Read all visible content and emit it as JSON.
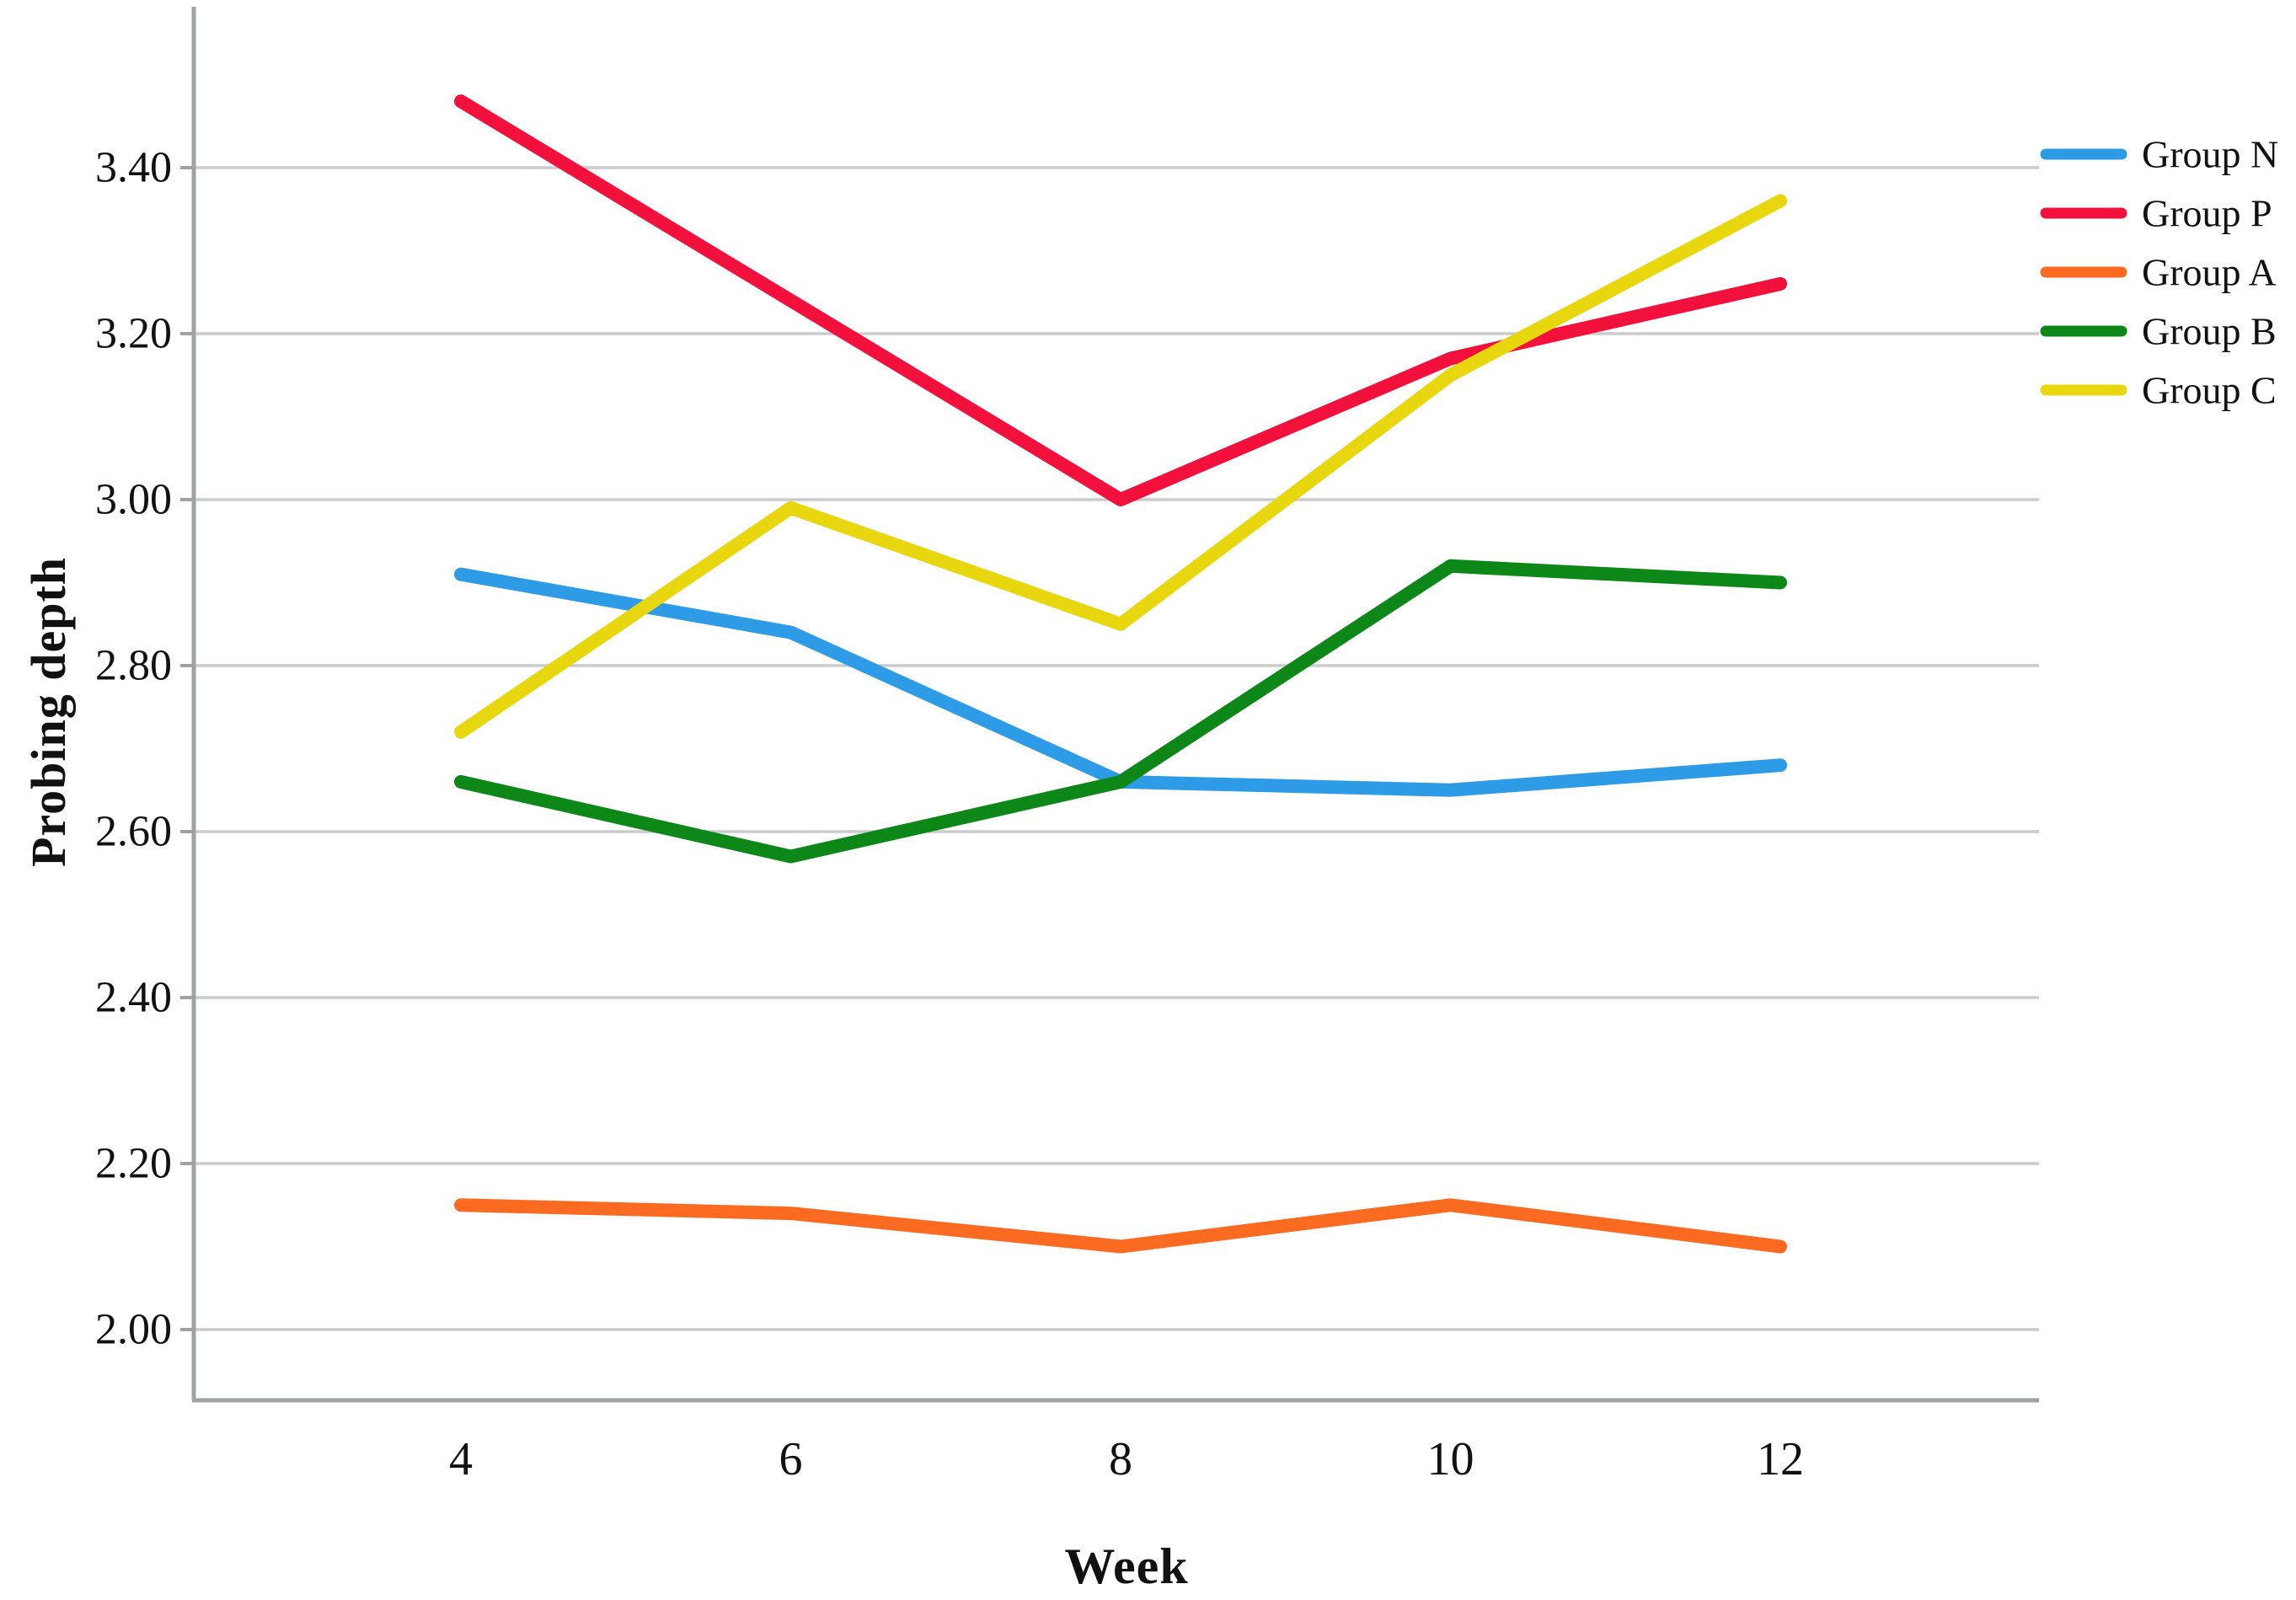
{
  "chart_data": {
    "type": "line",
    "title": "",
    "xlabel": "Week",
    "ylabel": "Probing depth",
    "x": [
      4,
      6,
      8,
      10,
      12
    ],
    "series": [
      {
        "name": "Group N",
        "color": "#2D9BE5",
        "values": [
          2.91,
          2.84,
          2.66,
          2.65,
          2.68
        ]
      },
      {
        "name": "Group P",
        "color": "#F2103C",
        "values": [
          3.48,
          3.24,
          3.0,
          3.17,
          3.26
        ]
      },
      {
        "name": "Group A",
        "color": "#FA6B21",
        "values": [
          2.15,
          2.14,
          2.1,
          2.15,
          2.1
        ]
      },
      {
        "name": "Group B",
        "color": "#0D8718",
        "values": [
          2.66,
          2.57,
          2.66,
          2.92,
          2.9
        ]
      },
      {
        "name": "Group C",
        "color": "#E8D70E",
        "values": [
          2.72,
          2.99,
          2.85,
          3.15,
          3.36
        ]
      }
    ],
    "y_ticks": [
      3.4,
      3.2,
      3.0,
      2.8,
      2.6,
      2.4,
      2.2,
      2.0
    ],
    "ylim": [
      1.91,
      3.59
    ],
    "xlim": [
      2.4,
      13.6
    ],
    "grid": true,
    "legend_position": "right"
  },
  "axes": {
    "x_tick_labels": [
      "4",
      "6",
      "8",
      "10",
      "12"
    ],
    "y_tick_labels": [
      "3.40",
      "3.20",
      "3.00",
      "2.80",
      "2.60",
      "2.40",
      "2.20",
      "2.00"
    ]
  },
  "legend": {
    "items": [
      "Group N",
      "Group P",
      "Group A",
      "Group B",
      "Group C"
    ]
  },
  "colors": {
    "grid": "#CACBCC",
    "axis": "#9FA2A5",
    "text": "#111111",
    "background": "#FFFFFF"
  }
}
